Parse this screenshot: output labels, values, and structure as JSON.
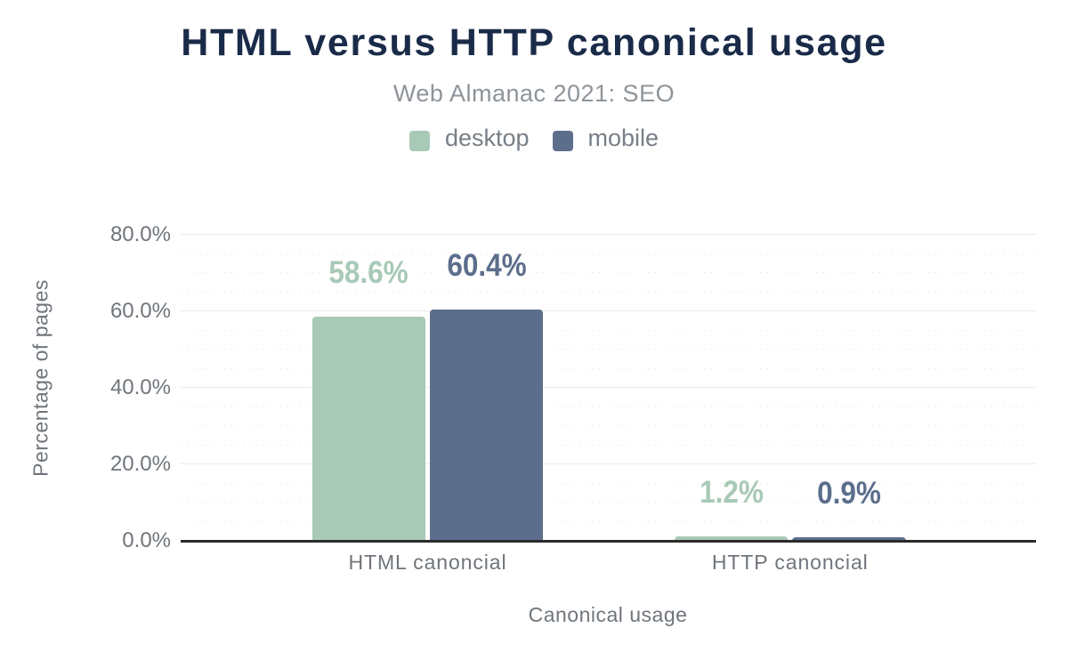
{
  "chart_data": {
    "type": "bar",
    "title": "HTML versus HTTP canonical usage",
    "subtitle": "Web Almanac 2021: SEO",
    "categories": [
      "HTML canoncial",
      "HTTP canoncial"
    ],
    "series": [
      {
        "name": "desktop",
        "color": "#a8c9b6",
        "values": [
          58.6,
          1.2
        ],
        "labels": [
          "58.6%",
          "1.2%"
        ]
      },
      {
        "name": "mobile",
        "color": "#5c6e8c",
        "values": [
          60.4,
          0.9
        ],
        "labels": [
          "60.4%",
          "0.9%"
        ]
      }
    ],
    "xlabel": "Canonical usage",
    "ylabel": "Percentage of pages",
    "ylim": [
      0,
      80
    ],
    "yticks": [
      0,
      20,
      40,
      60,
      80
    ],
    "ytick_labels": [
      "0.0%",
      "20.0%",
      "40.0%",
      "60.0%",
      "80.0%"
    ],
    "minor_tick_step": 5,
    "grid": true,
    "legend_position": "top",
    "colors": {
      "title": "#1a2b49",
      "subtitle": "#8e9499",
      "axis_text": "#6f757b",
      "axis_line": "#2b2b2b",
      "background": "#ffffff"
    }
  }
}
